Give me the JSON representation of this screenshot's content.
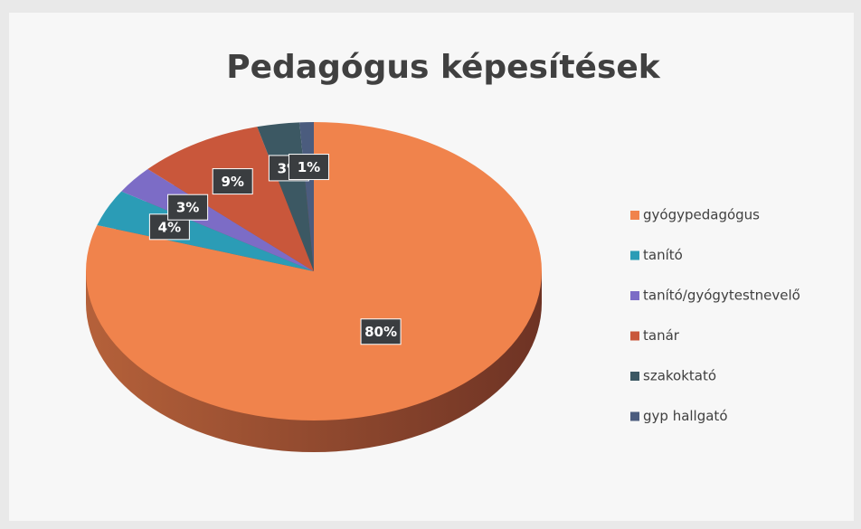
{
  "chart_data": {
    "type": "pie",
    "title": "Pedagógus képesítések",
    "categories": [
      "gyógypedagógus",
      "tanító",
      "tanító/gyógytestnevelő",
      "tanár",
      "szakoktató",
      "gyp hallgató"
    ],
    "values": [
      80,
      4,
      3,
      9,
      3,
      1
    ],
    "value_labels": [
      "80%",
      "4%",
      "3%",
      "9%",
      "3%",
      "1%"
    ],
    "colors": [
      "#f0834c",
      "#2b9cb6",
      "#7c6cc6",
      "#c9573b",
      "#3c5863",
      "#4b5c7e"
    ],
    "legend": "right"
  }
}
